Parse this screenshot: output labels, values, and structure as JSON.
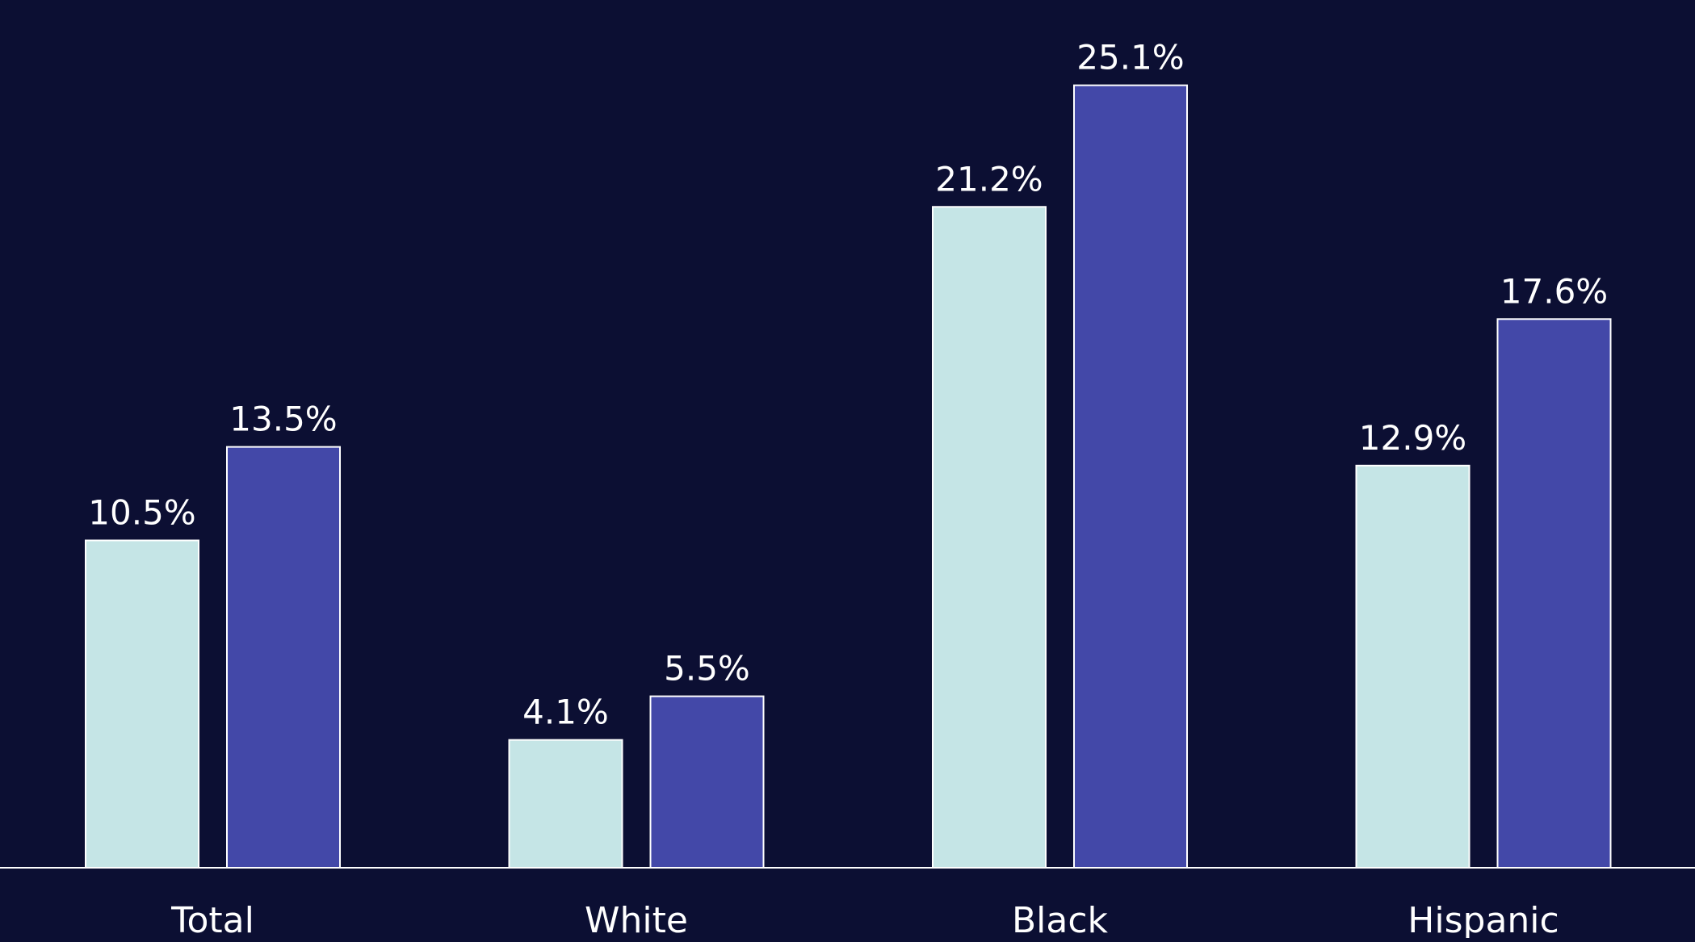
{
  "colors": {
    "background": "#0c0f33",
    "series_1": "#c5e5e6",
    "series_2": "#4348a8",
    "text": "#ffffff",
    "axis": "#ffffff"
  },
  "chart_data": {
    "type": "bar",
    "title": "",
    "xlabel": "",
    "ylabel": "",
    "categories": [
      "Total",
      "White",
      "Black",
      "Hispanic"
    ],
    "series": [
      {
        "values": [
          10.5,
          4.1,
          21.2,
          12.9
        ],
        "labels": [
          "10.5%",
          "4.1%",
          "21.2%",
          "12.9%"
        ]
      },
      {
        "values": [
          13.5,
          5.5,
          25.1,
          17.6
        ],
        "labels": [
          "13.5%",
          "5.5%",
          "25.1%",
          "17.6%"
        ]
      }
    ],
    "ylim": [
      0,
      26.8
    ],
    "grid": false,
    "legend": "none"
  }
}
